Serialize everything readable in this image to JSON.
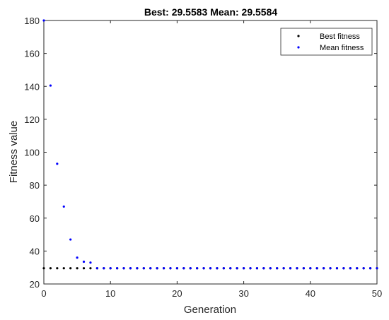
{
  "chart_data": {
    "type": "scatter",
    "title": "Best: 29.5583 Mean: 29.5584",
    "xlabel": "Generation",
    "ylabel": "Fitness value",
    "xlim": [
      0,
      50
    ],
    "ylim": [
      20,
      180
    ],
    "xticks": [
      "0",
      "10",
      "20",
      "30",
      "40",
      "50"
    ],
    "yticks": [
      "20",
      "40",
      "60",
      "80",
      "100",
      "120",
      "140",
      "160",
      "180"
    ],
    "grid": false,
    "legend_position": "top-right",
    "series": [
      {
        "name": "Best fitness",
        "color": "#000000",
        "x": [
          0,
          1,
          2,
          3,
          4,
          5,
          6,
          7,
          8,
          9,
          10,
          11,
          12,
          13,
          14,
          15,
          16,
          17,
          18,
          19,
          20,
          21,
          22,
          23,
          24,
          25,
          26,
          27,
          28,
          29,
          30,
          31,
          32,
          33,
          34,
          35,
          36,
          37,
          38,
          39,
          40,
          41,
          42,
          43,
          44,
          45,
          46,
          47,
          48,
          49,
          50
        ],
        "y": [
          29.56,
          29.56,
          29.56,
          29.56,
          29.56,
          29.56,
          29.56,
          29.56,
          29.56,
          29.56,
          29.56,
          29.56,
          29.56,
          29.56,
          29.56,
          29.56,
          29.56,
          29.56,
          29.56,
          29.56,
          29.56,
          29.56,
          29.56,
          29.56,
          29.56,
          29.56,
          29.56,
          29.56,
          29.56,
          29.56,
          29.56,
          29.56,
          29.56,
          29.56,
          29.56,
          29.56,
          29.56,
          29.56,
          29.56,
          29.56,
          29.56,
          29.56,
          29.56,
          29.56,
          29.56,
          29.56,
          29.56,
          29.56,
          29.56,
          29.56,
          29.56
        ]
      },
      {
        "name": "Mean fitness",
        "color": "#0000ff",
        "x": [
          0,
          1,
          2,
          3,
          4,
          5,
          6,
          7,
          8,
          9,
          10,
          11,
          12,
          13,
          14,
          15,
          16,
          17,
          18,
          19,
          20,
          21,
          22,
          23,
          24,
          25,
          26,
          27,
          28,
          29,
          30,
          31,
          32,
          33,
          34,
          35,
          36,
          37,
          38,
          39,
          40,
          41,
          42,
          43,
          44,
          45,
          46,
          47,
          48,
          49,
          50
        ],
        "y": [
          180,
          140.5,
          93,
          67,
          47,
          36,
          33.5,
          33,
          29.56,
          29.56,
          29.56,
          29.56,
          29.56,
          29.56,
          29.56,
          29.56,
          29.56,
          29.56,
          29.56,
          29.56,
          29.56,
          29.56,
          29.56,
          29.56,
          29.56,
          29.56,
          29.56,
          29.56,
          29.56,
          29.56,
          29.56,
          29.56,
          29.56,
          29.56,
          29.56,
          29.56,
          29.56,
          29.56,
          29.56,
          29.56,
          29.56,
          29.56,
          29.56,
          29.56,
          29.56,
          29.56,
          29.56,
          29.56,
          29.56,
          29.56,
          29.56
        ]
      }
    ]
  }
}
